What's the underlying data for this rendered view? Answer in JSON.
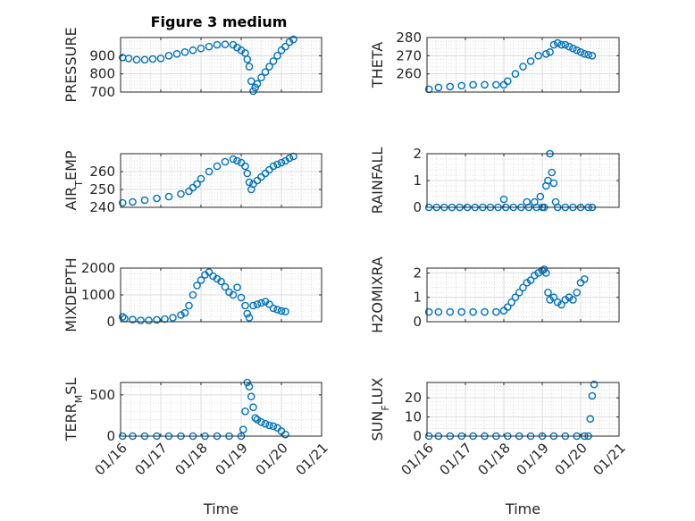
{
  "figure": {
    "title": "Figure 3 medium"
  },
  "chart_data": [
    {
      "type": "scatter",
      "ylabel": "PRESSURE",
      "title": "Figure 3 medium",
      "ylim": [
        700,
        1000
      ],
      "yticks": [
        700,
        800,
        900
      ],
      "xlim": [
        0,
        5
      ],
      "xticks": [
        0,
        1,
        2,
        3,
        4,
        5
      ],
      "xticklabels": [
        "01/16",
        "01/17",
        "01/18",
        "01/19",
        "01/20",
        "01/21"
      ],
      "show_xticklabels": false,
      "xlabel": "",
      "points": [
        [
          0.05,
          890
        ],
        [
          0.2,
          885
        ],
        [
          0.4,
          878
        ],
        [
          0.6,
          878
        ],
        [
          0.8,
          882
        ],
        [
          1.0,
          885
        ],
        [
          1.2,
          900
        ],
        [
          1.4,
          910
        ],
        [
          1.6,
          920
        ],
        [
          1.8,
          930
        ],
        [
          2.0,
          940
        ],
        [
          2.2,
          950
        ],
        [
          2.4,
          960
        ],
        [
          2.6,
          962
        ],
        [
          2.8,
          960
        ],
        [
          2.9,
          945
        ],
        [
          3.0,
          930
        ],
        [
          3.1,
          915
        ],
        [
          3.15,
          880
        ],
        [
          3.2,
          840
        ],
        [
          3.25,
          760
        ],
        [
          3.3,
          705
        ],
        [
          3.35,
          725
        ],
        [
          3.4,
          745
        ],
        [
          3.5,
          780
        ],
        [
          3.6,
          810
        ],
        [
          3.7,
          840
        ],
        [
          3.8,
          870
        ],
        [
          3.9,
          900
        ],
        [
          4.0,
          930
        ],
        [
          4.1,
          950
        ],
        [
          4.2,
          975
        ],
        [
          4.3,
          990
        ]
      ]
    },
    {
      "type": "scatter",
      "ylabel": "THETA",
      "ylim": [
        250,
        280
      ],
      "yticks": [
        260,
        270,
        280
      ],
      "xlim": [
        0,
        5
      ],
      "xticks": [
        0,
        1,
        2,
        3,
        4,
        5
      ],
      "xticklabels": [
        "01/16",
        "01/17",
        "01/18",
        "01/19",
        "01/20",
        "01/21"
      ],
      "show_xticklabels": false,
      "xlabel": "",
      "points": [
        [
          0.05,
          251.5
        ],
        [
          0.3,
          252.5
        ],
        [
          0.6,
          253
        ],
        [
          0.9,
          253.5
        ],
        [
          1.2,
          254
        ],
        [
          1.5,
          254
        ],
        [
          1.8,
          254
        ],
        [
          2.0,
          254
        ],
        [
          2.1,
          256
        ],
        [
          2.3,
          260
        ],
        [
          2.5,
          264
        ],
        [
          2.7,
          267
        ],
        [
          2.9,
          270
        ],
        [
          3.1,
          271
        ],
        [
          3.2,
          272
        ],
        [
          3.3,
          276
        ],
        [
          3.4,
          277
        ],
        [
          3.5,
          276
        ],
        [
          3.6,
          276
        ],
        [
          3.7,
          275
        ],
        [
          3.8,
          274
        ],
        [
          3.9,
          273
        ],
        [
          4.0,
          272
        ],
        [
          4.1,
          271
        ],
        [
          4.2,
          270.5
        ],
        [
          4.3,
          270
        ]
      ]
    },
    {
      "type": "scatter",
      "ylabel": "AIR_TEMP",
      "ylim": [
        240,
        270
      ],
      "yticks": [
        240,
        250,
        260
      ],
      "xlim": [
        0,
        5
      ],
      "xticks": [
        0,
        1,
        2,
        3,
        4,
        5
      ],
      "xticklabels": [
        "01/16",
        "01/17",
        "01/18",
        "01/19",
        "01/20",
        "01/21"
      ],
      "show_xticklabels": false,
      "xlabel": "",
      "points": [
        [
          0.05,
          242.5
        ],
        [
          0.3,
          243
        ],
        [
          0.6,
          244
        ],
        [
          0.9,
          245
        ],
        [
          1.2,
          246
        ],
        [
          1.5,
          247.5
        ],
        [
          1.7,
          249
        ],
        [
          1.8,
          251
        ],
        [
          1.9,
          253
        ],
        [
          2.0,
          256
        ],
        [
          2.2,
          260
        ],
        [
          2.4,
          263
        ],
        [
          2.6,
          265.5
        ],
        [
          2.8,
          267
        ],
        [
          2.9,
          266
        ],
        [
          3.0,
          265
        ],
        [
          3.1,
          263
        ],
        [
          3.15,
          259
        ],
        [
          3.2,
          254
        ],
        [
          3.25,
          250
        ],
        [
          3.3,
          253
        ],
        [
          3.4,
          255
        ],
        [
          3.5,
          257
        ],
        [
          3.6,
          259
        ],
        [
          3.7,
          261
        ],
        [
          3.8,
          263
        ],
        [
          3.9,
          264
        ],
        [
          4.0,
          265
        ],
        [
          4.1,
          266
        ],
        [
          4.2,
          267.5
        ],
        [
          4.3,
          268.5
        ]
      ]
    },
    {
      "type": "scatter",
      "ylabel": "RAINFALL",
      "ylim": [
        0,
        2
      ],
      "yticks": [
        0,
        1,
        2
      ],
      "xlim": [
        0,
        5
      ],
      "xticks": [
        0,
        1,
        2,
        3,
        4,
        5
      ],
      "xticklabels": [
        "01/16",
        "01/17",
        "01/18",
        "01/19",
        "01/20",
        "01/21"
      ],
      "show_xticklabels": false,
      "xlabel": "",
      "points": [
        [
          0.05,
          0
        ],
        [
          0.25,
          0
        ],
        [
          0.45,
          0
        ],
        [
          0.65,
          0
        ],
        [
          0.85,
          0
        ],
        [
          1.05,
          0
        ],
        [
          1.25,
          0
        ],
        [
          1.45,
          0
        ],
        [
          1.65,
          0
        ],
        [
          1.85,
          0
        ],
        [
          2.0,
          0.3
        ],
        [
          2.05,
          0
        ],
        [
          2.25,
          0
        ],
        [
          2.45,
          0
        ],
        [
          2.6,
          0.2
        ],
        [
          2.65,
          0
        ],
        [
          2.8,
          0.2
        ],
        [
          2.85,
          0
        ],
        [
          2.95,
          0.4
        ],
        [
          3.0,
          0
        ],
        [
          3.05,
          0
        ],
        [
          3.1,
          0.8
        ],
        [
          3.15,
          1.0
        ],
        [
          3.2,
          2.0
        ],
        [
          3.25,
          1.3
        ],
        [
          3.3,
          0.9
        ],
        [
          3.35,
          0.2
        ],
        [
          3.4,
          0
        ],
        [
          3.6,
          0
        ],
        [
          3.8,
          0
        ],
        [
          4.0,
          0
        ],
        [
          4.2,
          0
        ],
        [
          4.3,
          0
        ]
      ]
    },
    {
      "type": "scatter",
      "ylabel": "MIXDEPTH",
      "ylim": [
        0,
        2000
      ],
      "yticks": [
        0,
        1000,
        2000
      ],
      "xlim": [
        0,
        5
      ],
      "xticks": [
        0,
        1,
        2,
        3,
        4,
        5
      ],
      "xticklabels": [
        "01/16",
        "01/17",
        "01/18",
        "01/19",
        "01/20",
        "01/21"
      ],
      "show_xticklabels": false,
      "xlabel": "",
      "points": [
        [
          0.05,
          180
        ],
        [
          0.1,
          120
        ],
        [
          0.3,
          80
        ],
        [
          0.5,
          50
        ],
        [
          0.7,
          50
        ],
        [
          0.9,
          70
        ],
        [
          1.1,
          100
        ],
        [
          1.3,
          150
        ],
        [
          1.5,
          250
        ],
        [
          1.6,
          330
        ],
        [
          1.7,
          600
        ],
        [
          1.8,
          1000
        ],
        [
          1.9,
          1350
        ],
        [
          2.0,
          1550
        ],
        [
          2.1,
          1750
        ],
        [
          2.2,
          1850
        ],
        [
          2.3,
          1700
        ],
        [
          2.4,
          1600
        ],
        [
          2.5,
          1500
        ],
        [
          2.6,
          1300
        ],
        [
          2.7,
          1100
        ],
        [
          2.8,
          1000
        ],
        [
          2.9,
          1280
        ],
        [
          3.0,
          900
        ],
        [
          3.1,
          600
        ],
        [
          3.15,
          300
        ],
        [
          3.2,
          150
        ],
        [
          3.3,
          600
        ],
        [
          3.4,
          650
        ],
        [
          3.5,
          700
        ],
        [
          3.6,
          750
        ],
        [
          3.7,
          650
        ],
        [
          3.8,
          500
        ],
        [
          3.9,
          450
        ],
        [
          4.0,
          400
        ],
        [
          4.1,
          380
        ]
      ]
    },
    {
      "type": "scatter",
      "ylabel": "H2OMIXRA",
      "ylim": [
        0,
        2.2
      ],
      "yticks": [
        0,
        1,
        2
      ],
      "xlim": [
        0,
        5
      ],
      "xticks": [
        0,
        1,
        2,
        3,
        4,
        5
      ],
      "xticklabels": [
        "01/16",
        "01/17",
        "01/18",
        "01/19",
        "01/20",
        "01/21"
      ],
      "show_xticklabels": false,
      "xlabel": "",
      "points": [
        [
          0.05,
          0.4
        ],
        [
          0.3,
          0.4
        ],
        [
          0.6,
          0.4
        ],
        [
          0.9,
          0.4
        ],
        [
          1.2,
          0.4
        ],
        [
          1.5,
          0.4
        ],
        [
          1.8,
          0.4
        ],
        [
          2.0,
          0.45
        ],
        [
          2.1,
          0.6
        ],
        [
          2.2,
          0.8
        ],
        [
          2.3,
          1.0
        ],
        [
          2.4,
          1.2
        ],
        [
          2.5,
          1.4
        ],
        [
          2.6,
          1.6
        ],
        [
          2.7,
          1.7
        ],
        [
          2.8,
          1.9
        ],
        [
          2.9,
          2.0
        ],
        [
          3.0,
          2.1
        ],
        [
          3.05,
          2.15
        ],
        [
          3.1,
          2.0
        ],
        [
          3.15,
          1.2
        ],
        [
          3.2,
          0.9
        ],
        [
          3.3,
          1.0
        ],
        [
          3.4,
          0.8
        ],
        [
          3.5,
          0.7
        ],
        [
          3.6,
          0.9
        ],
        [
          3.7,
          1.0
        ],
        [
          3.8,
          0.9
        ],
        [
          3.9,
          1.2
        ],
        [
          4.0,
          1.6
        ],
        [
          4.1,
          1.75
        ]
      ]
    },
    {
      "type": "scatter",
      "ylabel": "TERR_MSL",
      "ylim": [
        0,
        650
      ],
      "yticks": [
        0,
        500
      ],
      "xlim": [
        0,
        5
      ],
      "xticks": [
        0,
        1,
        2,
        3,
        4,
        5
      ],
      "xticklabels": [
        "01/16",
        "01/17",
        "01/18",
        "01/19",
        "01/20",
        "01/21"
      ],
      "show_xticklabels": true,
      "xlabel": "Time",
      "points": [
        [
          0.05,
          0
        ],
        [
          0.3,
          0
        ],
        [
          0.6,
          0
        ],
        [
          0.9,
          0
        ],
        [
          1.2,
          0
        ],
        [
          1.5,
          0
        ],
        [
          1.8,
          0
        ],
        [
          2.1,
          0
        ],
        [
          2.4,
          0
        ],
        [
          2.7,
          0
        ],
        [
          3.0,
          0
        ],
        [
          3.05,
          80
        ],
        [
          3.1,
          300
        ],
        [
          3.15,
          650
        ],
        [
          3.2,
          600
        ],
        [
          3.25,
          480
        ],
        [
          3.3,
          350
        ],
        [
          3.35,
          220
        ],
        [
          3.4,
          200
        ],
        [
          3.5,
          170
        ],
        [
          3.6,
          150
        ],
        [
          3.7,
          130
        ],
        [
          3.8,
          120
        ],
        [
          3.9,
          100
        ],
        [
          4.0,
          60
        ],
        [
          4.1,
          20
        ]
      ]
    },
    {
      "type": "scatter",
      "ylabel": "SUN_FLUX",
      "ylim": [
        0,
        28
      ],
      "yticks": [
        0,
        10,
        20
      ],
      "xlim": [
        0,
        5
      ],
      "xticks": [
        0,
        1,
        2,
        3,
        4,
        5
      ],
      "xticklabels": [
        "01/16",
        "01/17",
        "01/18",
        "01/19",
        "01/20",
        "01/21"
      ],
      "show_xticklabels": true,
      "xlabel": "Time",
      "points": [
        [
          0.05,
          0
        ],
        [
          0.3,
          0
        ],
        [
          0.6,
          0
        ],
        [
          0.9,
          0
        ],
        [
          1.2,
          0
        ],
        [
          1.5,
          0
        ],
        [
          1.8,
          0
        ],
        [
          2.1,
          0
        ],
        [
          2.4,
          0
        ],
        [
          2.7,
          0
        ],
        [
          3.0,
          0
        ],
        [
          3.3,
          0
        ],
        [
          3.6,
          0
        ],
        [
          3.9,
          0
        ],
        [
          4.1,
          0
        ],
        [
          4.2,
          0
        ],
        [
          4.25,
          9
        ],
        [
          4.3,
          21
        ],
        [
          4.35,
          27
        ]
      ]
    }
  ]
}
